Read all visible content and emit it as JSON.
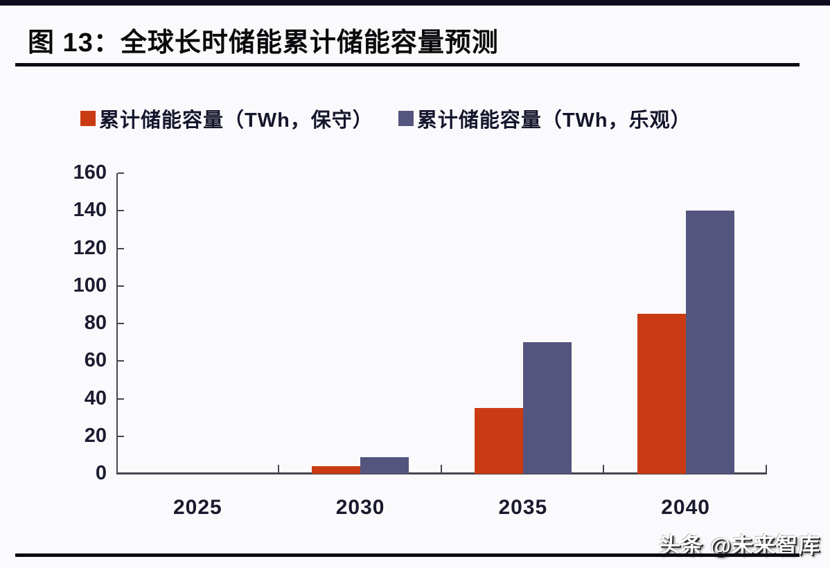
{
  "header": {
    "title": "图 13：全球长时储能累计储能容量预测"
  },
  "footer": {
    "watermark": "头条 @未来智库"
  },
  "colors": {
    "conservative_series": "#cb3b13",
    "optimistic_series": "#54557e",
    "axis": "#45454f",
    "tick_label": "#1c1c30",
    "top_band": "#0d0d1f",
    "rule": "#0c0c14",
    "background": "#fafafd"
  },
  "chart_data": {
    "type": "bar",
    "title": "图 13：全球长时储能累计储能容量预测",
    "categories": [
      "2025",
      "2030",
      "2035",
      "2040"
    ],
    "series": [
      {
        "name": "累计储能容量（TWh，保守）",
        "color": "#cb3b13",
        "values": [
          0,
          4,
          35,
          85
        ]
      },
      {
        "name": "累计储能容量（TWh，乐观）",
        "color": "#54557e",
        "values": [
          0,
          9,
          70,
          140
        ]
      }
    ],
    "xlabel": "",
    "ylabel": "",
    "ylim": [
      0,
      160
    ],
    "yticks": [
      0,
      20,
      40,
      60,
      80,
      100,
      120,
      140,
      160
    ],
    "grid": false,
    "legend_position": "top",
    "units": "TWh"
  }
}
